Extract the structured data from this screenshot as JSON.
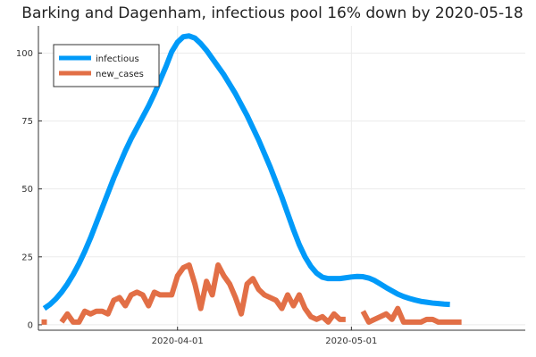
{
  "chart_data": {
    "type": "line",
    "title": "Barking and Dagenham, infectious pool 16% down by 2020-05-18",
    "xlabel": "",
    "ylabel": "",
    "grid": true,
    "legend_position": "top-left",
    "x_start": "2020-03-09",
    "x_end": "2020-05-27",
    "xlim": [
      "2020-03-08",
      "2020-05-31"
    ],
    "ylim": [
      -2,
      110
    ],
    "y_ticks": [
      0,
      25,
      50,
      75,
      100
    ],
    "x_ticks": [
      {
        "date": "2020-04-01",
        "label": "2020-04-01"
      },
      {
        "date": "2020-05-01",
        "label": "2020-05-01"
      }
    ],
    "series": [
      {
        "name": "infectious",
        "color": "#009af9",
        "values": [
          6,
          7.5,
          9.5,
          12,
          15,
          18.5,
          22.5,
          27,
          32,
          37.5,
          43,
          48.5,
          54,
          59,
          64,
          68.5,
          72.5,
          76.5,
          80.5,
          85,
          90,
          95,
          100.5,
          104,
          106,
          106.3,
          105.5,
          103.5,
          101,
          98,
          95,
          92,
          88.5,
          85,
          81,
          77,
          72.5,
          68,
          63,
          58,
          52.5,
          47,
          41,
          35,
          29.5,
          25,
          21.5,
          19,
          17.5,
          17,
          17,
          17,
          17.3,
          17.6,
          17.8,
          17.7,
          17.2,
          16.3,
          15,
          13.7,
          12.5,
          11.3,
          10.4,
          9.7,
          9.1,
          8.6,
          8.3,
          8,
          7.8,
          7.6,
          7.5
        ]
      },
      {
        "name": "new_cases",
        "color": "#e26f46",
        "values": [
          1,
          null,
          null,
          1,
          4,
          1,
          1,
          5,
          4,
          5,
          5,
          4,
          9,
          10,
          7,
          11,
          12,
          11,
          7,
          12,
          11,
          11,
          11,
          18,
          21,
          22,
          15,
          6,
          16,
          11,
          22,
          18,
          15,
          10,
          4,
          15,
          17,
          13,
          11,
          10,
          9,
          6,
          11,
          7,
          11,
          6,
          3,
          2,
          3,
          1,
          4,
          2,
          2,
          null,
          null,
          5,
          1,
          2,
          3,
          4,
          2,
          6,
          1,
          1,
          1,
          1,
          2,
          2,
          1,
          1,
          1,
          1,
          1
        ]
      }
    ]
  }
}
